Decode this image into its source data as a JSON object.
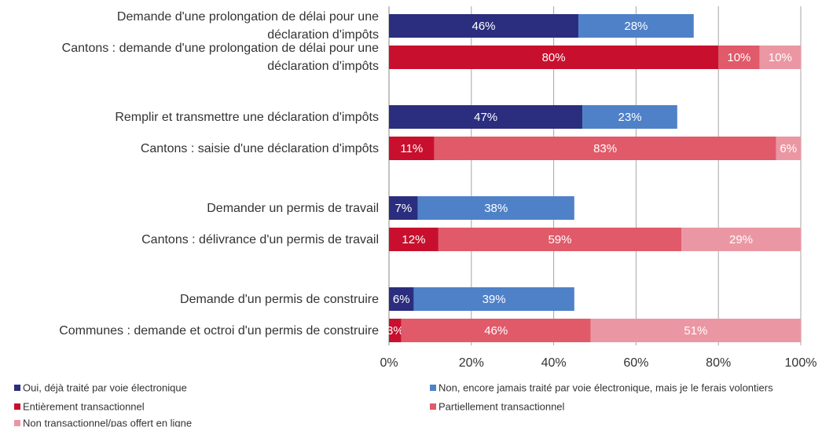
{
  "chart_data": {
    "type": "stacked-barh",
    "categories": [
      "Demande d'une prolongation de délai pour une déclaration d'impôts",
      "Cantons : demande d'une prolongation de délai pour une déclaration d'impôts",
      "Remplir et transmettre une déclaration d'impôts",
      "Cantons : saisie d'une déclaration d'impôts",
      "Demander un permis de travail",
      "Cantons : délivrance d'un permis de travail",
      "Demande d'un permis de construire",
      "Communes : demande et octroi d'un permis de construire"
    ],
    "series": [
      {
        "name": "Oui, déjà traité par voie électronique",
        "color": "#2b2e7e",
        "values": [
          46,
          null,
          47,
          null,
          7,
          null,
          6,
          null
        ],
        "value_labels": [
          "46%",
          null,
          "47%",
          null,
          "7%",
          null,
          "6%",
          null
        ]
      },
      {
        "name": "Non, encore jamais traité par voie électronique, mais je le ferais volontiers",
        "color": "#4f81c9",
        "values": [
          28,
          null,
          23,
          null,
          38,
          null,
          39,
          null
        ],
        "value_labels": [
          "28%",
          null,
          "23%",
          null,
          "38%",
          null,
          "39%",
          null
        ]
      },
      {
        "name": "Entièrement transactionnel",
        "color": "#c8102e",
        "values": [
          null,
          80,
          null,
          11,
          null,
          12,
          null,
          3
        ],
        "value_labels": [
          null,
          "80%",
          null,
          "11%",
          null,
          "12%",
          null,
          "3%"
        ]
      },
      {
        "name": "Partiellement transactionnel",
        "color": "#e05a6a",
        "values": [
          null,
          10,
          null,
          83,
          null,
          59,
          null,
          46
        ],
        "value_labels": [
          null,
          "10%",
          null,
          "83%",
          null,
          "59%",
          null,
          "46%"
        ]
      },
      {
        "name": "Non transactionnel/pas offert en ligne",
        "color": "#eb97a3",
        "values": [
          null,
          10,
          null,
          6,
          null,
          29,
          null,
          51
        ],
        "value_labels": [
          null,
          "10%",
          null,
          "6%",
          null,
          "29%",
          null,
          "51%"
        ]
      }
    ],
    "xlim": [
      0,
      100
    ],
    "xticks": [
      {
        "value": 0,
        "label": "0%"
      },
      {
        "value": 20,
        "label": "20%"
      },
      {
        "value": 40,
        "label": "40%"
      },
      {
        "value": 60,
        "label": "60%"
      },
      {
        "value": 80,
        "label": "80%"
      },
      {
        "value": 100,
        "label": "100%"
      }
    ],
    "grid": true
  }
}
